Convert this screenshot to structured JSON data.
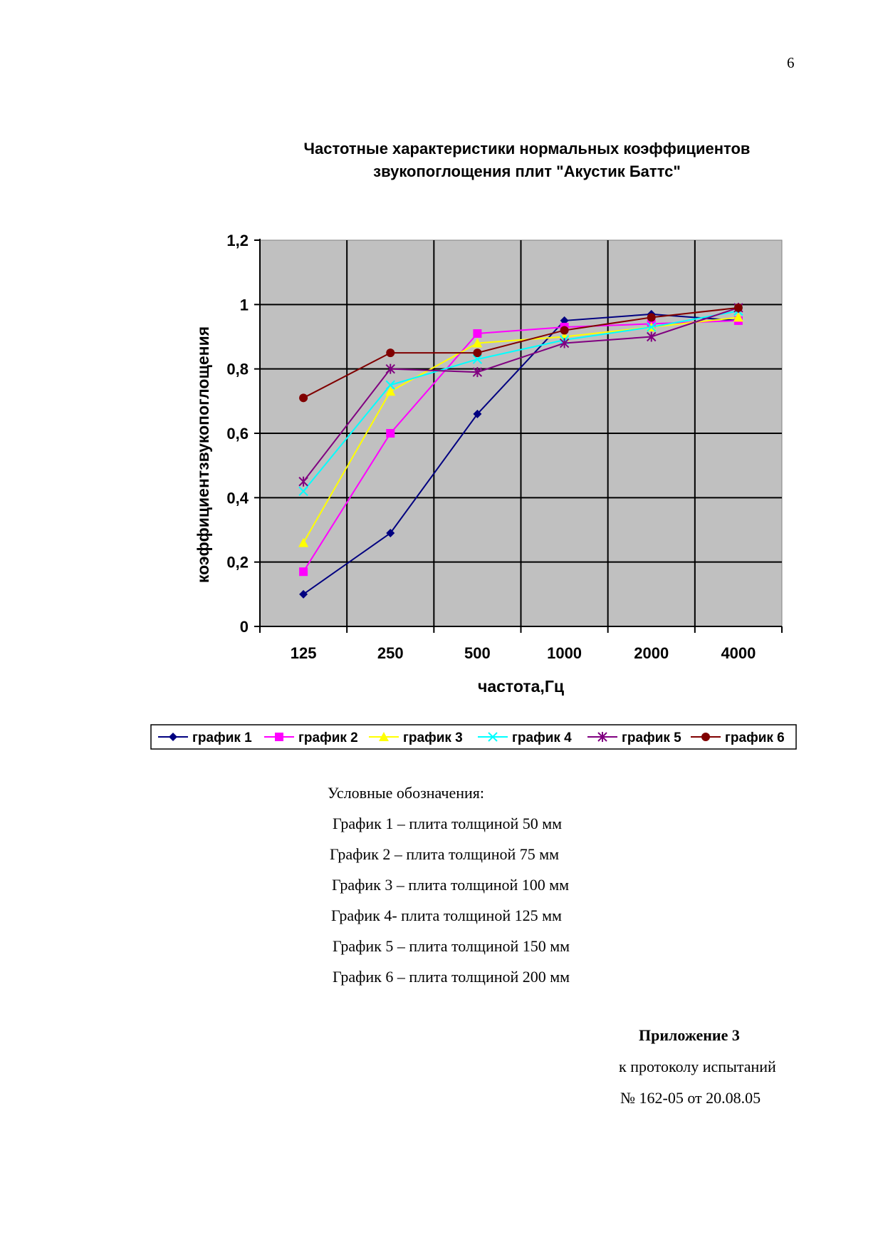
{
  "page_number": "6",
  "chart_data": {
    "type": "line",
    "title_lines": [
      "Частотные характеристики нормальных коэффициентов",
      "звукопоглощения плит \"Акустик Баттс\""
    ],
    "xlabel": "частота,Гц",
    "ylabel": "коэффициентзвукопоглощения",
    "categories": [
      "125",
      "250",
      "500",
      "1000",
      "2000",
      "4000"
    ],
    "ylim": [
      0,
      1.2
    ],
    "yticks": [
      0,
      0.2,
      0.4,
      0.6,
      0.8,
      1,
      1.2
    ],
    "ytick_labels": [
      "0",
      "0,2",
      "0,4",
      "0,6",
      "0,8",
      "1",
      "1,2"
    ],
    "grid": true,
    "legend_position": "bottom",
    "plot_background": "#c0c0c0",
    "series": [
      {
        "name": "график 1",
        "color": "#000080",
        "marker": "diamond",
        "values": [
          0.1,
          0.29,
          0.66,
          0.95,
          0.97,
          0.95
        ]
      },
      {
        "name": "график 2",
        "color": "#ff00ff",
        "marker": "square",
        "values": [
          0.17,
          0.6,
          0.91,
          0.93,
          0.94,
          0.95
        ]
      },
      {
        "name": "график 3",
        "color": "#ffff00",
        "marker": "triangle",
        "values": [
          0.26,
          0.73,
          0.88,
          0.9,
          0.93,
          0.96
        ]
      },
      {
        "name": "график 4",
        "color": "#00ffff",
        "marker": "x",
        "values": [
          0.42,
          0.75,
          0.83,
          0.89,
          0.93,
          0.98
        ]
      },
      {
        "name": "график 5",
        "color": "#800080",
        "marker": "star",
        "values": [
          0.45,
          0.8,
          0.79,
          0.88,
          0.9,
          0.99
        ]
      },
      {
        "name": "график 6",
        "color": "#800000",
        "marker": "circle",
        "values": [
          0.71,
          0.85,
          0.85,
          0.92,
          0.96,
          0.99
        ]
      }
    ]
  },
  "legend_text": {
    "heading": "Условные обозначения:",
    "lines": [
      "График 1 – плита толщиной 50 мм",
      "График 2 – плита  толщиной 75 мм",
      "График 3 – плита толщиной 100 мм",
      "График 4- плита толщиной 125 мм",
      "График 5 – плита толщиной 150 мм",
      "График 6 – плита толщиной 200 мм"
    ]
  },
  "appendix": {
    "title": "Приложение 3",
    "line1": "к протоколу испытаний",
    "line2": "№ 162-05 от 20.08.05"
  }
}
